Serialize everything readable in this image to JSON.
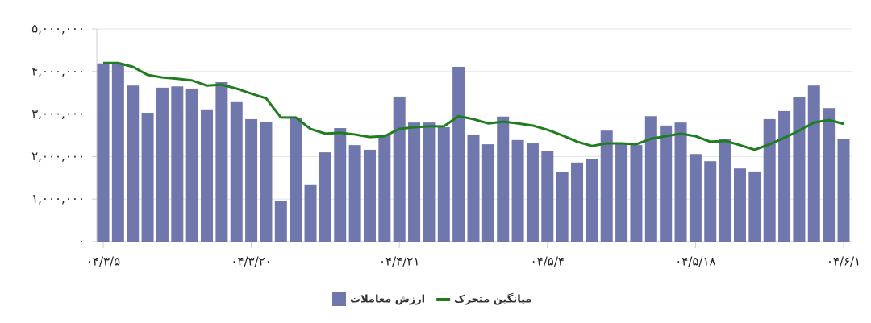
{
  "chart_data": {
    "type": "bar",
    "categories": [
      "۰۴/۳/۵",
      null,
      null,
      null,
      null,
      null,
      null,
      null,
      null,
      null,
      "۰۴/۳/۲۰",
      null,
      null,
      null,
      null,
      null,
      null,
      null,
      null,
      null,
      "۰۴/۴/۲۱",
      null,
      null,
      null,
      null,
      null,
      null,
      null,
      null,
      null,
      "۰۴/۵/۴",
      null,
      null,
      null,
      null,
      null,
      null,
      null,
      null,
      null,
      "۰۴/۵/۱۸",
      null,
      null,
      null,
      null,
      null,
      null,
      null,
      null,
      null,
      "۰۴/۶/۱"
    ],
    "series": [
      {
        "name": "ارزش معاملات",
        "type": "bar",
        "color": "#6f77ad",
        "values": [
          4190000,
          4190000,
          3670000,
          3030000,
          3620000,
          3650000,
          3600000,
          3110000,
          3750000,
          3280000,
          2880000,
          2820000,
          950000,
          2920000,
          1330000,
          2100000,
          2670000,
          2270000,
          2160000,
          2500000,
          3410000,
          2800000,
          2800000,
          2690000,
          4110000,
          2520000,
          2290000,
          2940000,
          2390000,
          2310000,
          2140000,
          1630000,
          1860000,
          1950000,
          2610000,
          2310000,
          2270000,
          2950000,
          2730000,
          2800000,
          2060000,
          1890000,
          2410000,
          1720000,
          1650000,
          2880000,
          3070000,
          3390000,
          3670000,
          3140000,
          2410000
        ]
      },
      {
        "name": "میانگین متحرک",
        "type": "line",
        "color": "#1e7d1e",
        "values": [
          4200000,
          4200000,
          4110000,
          3920000,
          3860000,
          3830000,
          3790000,
          3670000,
          3690000,
          3600000,
          3480000,
          3370000,
          2920000,
          2920000,
          2650000,
          2540000,
          2560000,
          2520000,
          2460000,
          2480000,
          2650000,
          2690000,
          2710000,
          2710000,
          2950000,
          2880000,
          2780000,
          2820000,
          2780000,
          2730000,
          2630000,
          2500000,
          2350000,
          2250000,
          2310000,
          2310000,
          2290000,
          2420000,
          2480000,
          2540000,
          2480000,
          2350000,
          2370000,
          2270000,
          2160000,
          2290000,
          2440000,
          2610000,
          2800000,
          2860000,
          2770000
        ]
      }
    ],
    "ylim": [
      0,
      5000000
    ],
    "yticks": [
      {
        "value": 0,
        "label": "۰"
      },
      {
        "value": 1000000,
        "label": "۱,۰۰۰,۰۰۰"
      },
      {
        "value": 2000000,
        "label": "۲,۰۰۰,۰۰۰"
      },
      {
        "value": 3000000,
        "label": "۳,۰۰۰,۰۰۰"
      },
      {
        "value": 4000000,
        "label": "۴,۰۰۰,۰۰۰"
      },
      {
        "value": 5000000,
        "label": "۵,۰۰۰,۰۰۰"
      }
    ],
    "grid": true,
    "legend": "bottom"
  }
}
